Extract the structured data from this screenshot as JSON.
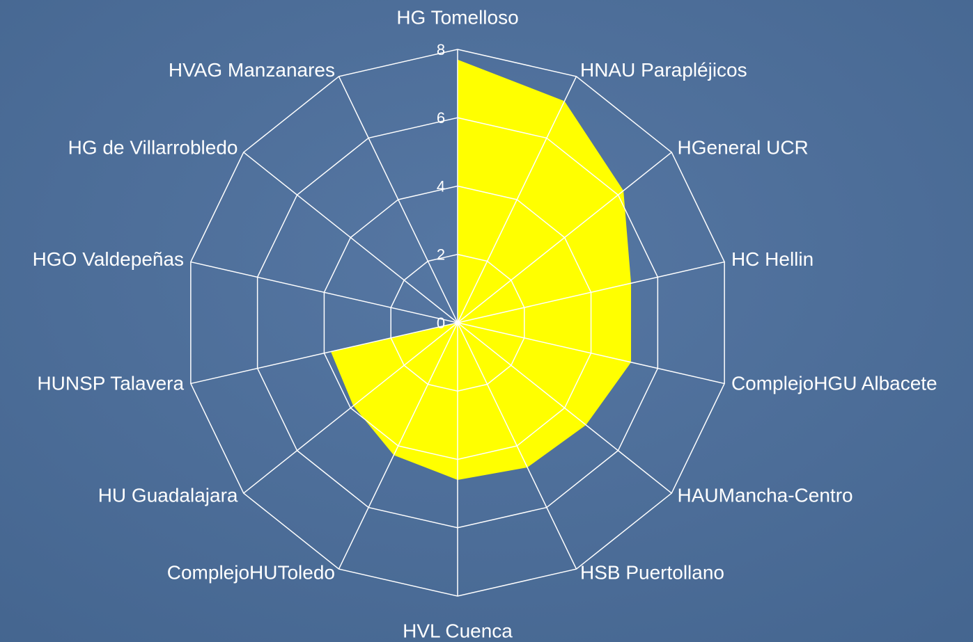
{
  "chart_data": {
    "type": "radar",
    "categories": [
      "HG Tomelloso",
      "HNAU Parapléjicos",
      "HGeneral UCR",
      "HC Hellin",
      "ComplejoHGU Albacete",
      "HAUMancha-Centro",
      "HSB Puertollano",
      "HVL Cuenca",
      "ComplejoHUToledo",
      "HU Guadalajara",
      "HUNSP Talavera",
      "HGO Valdepeñas",
      "HG de Villarrobledo",
      "HVAG Manzanares"
    ],
    "values": [
      7.7,
      7.2,
      6.2,
      5.2,
      5.2,
      4.8,
      4.7,
      4.6,
      4.3,
      3.9,
      3.8,
      0,
      0,
      0
    ],
    "color": "#ffff00",
    "rlim": [
      0,
      8
    ],
    "rticks": [
      0,
      2,
      4,
      6,
      8
    ],
    "grid": true
  }
}
